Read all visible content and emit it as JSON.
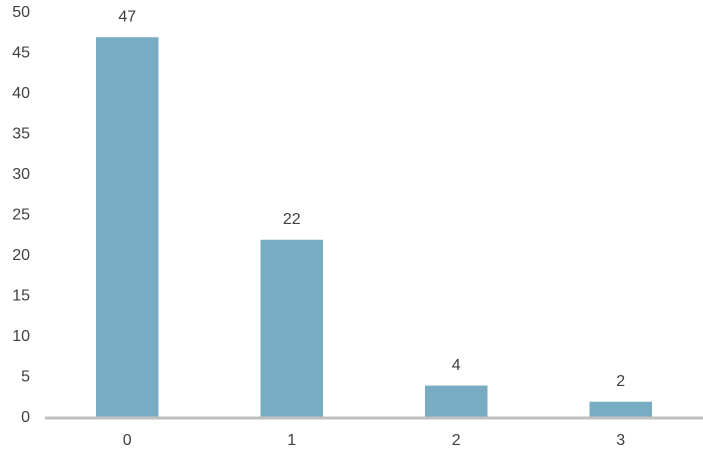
{
  "chart_data": {
    "type": "bar",
    "categories": [
      "0",
      "1",
      "2",
      "3"
    ],
    "values": [
      47,
      22,
      4,
      2
    ],
    "color": "#2f7fa1",
    "ylim": [
      0,
      50
    ],
    "yticks": [
      0,
      5,
      10,
      15,
      20,
      25,
      30,
      35,
      40,
      45,
      50
    ],
    "grid": false
  }
}
